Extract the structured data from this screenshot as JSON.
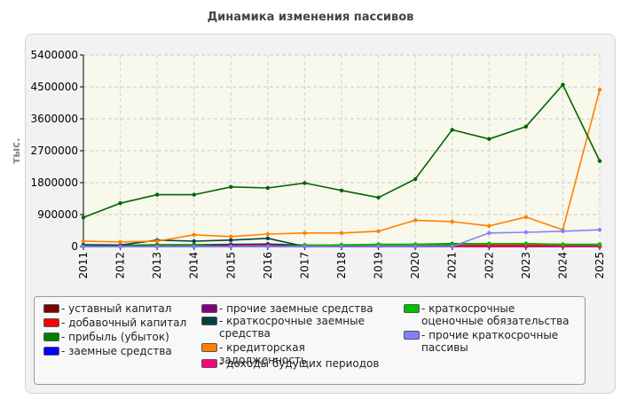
{
  "chart_data": {
    "type": "line",
    "title": "Динамика изменения пассивов",
    "ylabel": "тыс.",
    "xlabel": "",
    "x": [
      "2011",
      "2012",
      "2013",
      "2014",
      "2015",
      "2016",
      "2017",
      "2018",
      "2019",
      "2020",
      "2021",
      "2022",
      "2023",
      "2024",
      "2025"
    ],
    "ylim": [
      0,
      5400000
    ],
    "yticks": [
      0,
      900000,
      1800000,
      2700000,
      3600000,
      4500000,
      5400000
    ],
    "ytick_labels": [
      "0",
      "900000",
      "1800000",
      "2700000",
      "3600000",
      "4500000",
      "5400000"
    ],
    "grid": true,
    "legend_position": "bottom",
    "series": [
      {
        "name": "- уставный капитал",
        "color": "#7a0000",
        "values": [
          10000,
          10000,
          10000,
          10000,
          10000,
          10000,
          10000,
          10000,
          10000,
          10000,
          10000,
          10000,
          10000,
          10000,
          10000
        ]
      },
      {
        "name": "- добавочный капитал",
        "color": "#ff0000",
        "values": [
          0,
          0,
          0,
          0,
          0,
          0,
          0,
          0,
          0,
          0,
          40000,
          40000,
          40000,
          40000,
          40000
        ]
      },
      {
        "name": "- прибыль (убыток)",
        "color": "#008000",
        "values": [
          40000,
          30000,
          50000,
          50000,
          60000,
          70000,
          40000,
          40000,
          60000,
          60000,
          80000,
          80000,
          80000,
          60000,
          60000
        ]
      },
      {
        "name": "- заемные средства",
        "color": "#0000ff",
        "values": [
          0,
          0,
          0,
          0,
          0,
          0,
          0,
          0,
          0,
          0,
          0,
          0,
          0,
          0,
          0
        ]
      },
      {
        "name": "- прочие заемные средства",
        "color": "#800080",
        "values": [
          0,
          0,
          0,
          0,
          50000,
          60000,
          0,
          0,
          0,
          0,
          0,
          0,
          0,
          0,
          0
        ]
      },
      {
        "name": "- краткосрочные заемные средства",
        "color": "#004040",
        "values": [
          50000,
          40000,
          180000,
          150000,
          180000,
          230000,
          0,
          0,
          0,
          0,
          0,
          0,
          0,
          0,
          0
        ]
      },
      {
        "name": "- кредиторская задолженность",
        "color": "#ff8000",
        "values": [
          150000,
          130000,
          150000,
          330000,
          280000,
          350000,
          380000,
          380000,
          430000,
          740000,
          700000,
          580000,
          830000,
          470000,
          4420000
        ]
      },
      {
        "name": "- доходы будущих периодов",
        "color": "#ff0080",
        "values": [
          0,
          0,
          0,
          0,
          0,
          0,
          0,
          0,
          0,
          0,
          0,
          0,
          0,
          0,
          0
        ]
      },
      {
        "name": "- краткосрочные оценочные обязательства",
        "color": "#00c000",
        "values": [
          0,
          0,
          0,
          0,
          0,
          0,
          20000,
          50000,
          50000,
          50000,
          50000,
          80000,
          80000,
          50000,
          50000
        ]
      },
      {
        "name": "- прочие краткосрочные пассивы",
        "color": "#8080ff",
        "values": [
          0,
          0,
          0,
          0,
          0,
          0,
          0,
          0,
          0,
          0,
          0,
          380000,
          400000,
          430000,
          470000
        ]
      },
      {
        "name": "",
        "color": "#006400",
        "values": [
          820000,
          1220000,
          1460000,
          1460000,
          1680000,
          1650000,
          1790000,
          1580000,
          1380000,
          1900000,
          3290000,
          3030000,
          3380000,
          4560000,
          2410000
        ]
      }
    ]
  },
  "legend": [
    {
      "label": "- уставный капитал",
      "color": "#7a0000"
    },
    {
      "label": "- добавочный капитал",
      "color": "#ff0000"
    },
    {
      "label": "- прибыль (убыток)",
      "color": "#008000"
    },
    {
      "label": "- заемные средства",
      "color": "#0000ff"
    },
    {
      "label": "- прочие заемные средства",
      "color": "#800080"
    },
    {
      "label": "- краткосрочные заемные средства",
      "color": "#004040"
    },
    {
      "label": "- кредиторская задолженность",
      "color": "#ff8000"
    },
    {
      "label": "- доходы будущих периодов",
      "color": "#ff0080"
    },
    {
      "label": "- краткосрочные оценочные обязательства",
      "color": "#00c000"
    },
    {
      "label": "- прочие краткосрочные пассивы",
      "color": "#8080ff"
    }
  ]
}
